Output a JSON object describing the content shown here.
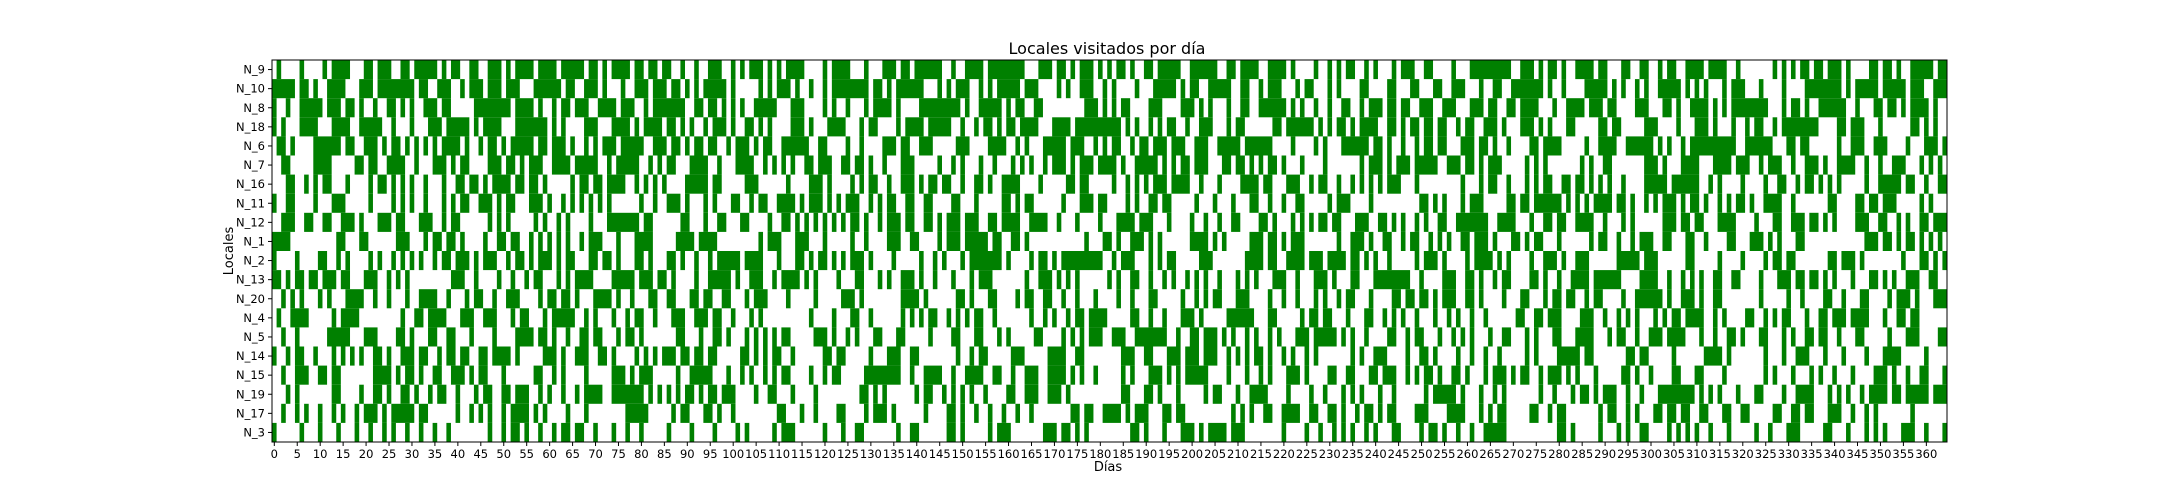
{
  "chart_data": {
    "type": "heatmap",
    "title": "Locales visitados por día",
    "xlabel": "Días",
    "ylabel": "Locales",
    "color": "#008000",
    "background": "#ffffff",
    "n_days": 365,
    "x_ticks": [
      0,
      5,
      10,
      15,
      20,
      25,
      30,
      35,
      40,
      45,
      50,
      55,
      60,
      65,
      70,
      75,
      80,
      85,
      90,
      95,
      100,
      105,
      110,
      115,
      120,
      125,
      130,
      135,
      140,
      145,
      150,
      155,
      160,
      165,
      170,
      175,
      180,
      185,
      190,
      195,
      200,
      205,
      210,
      215,
      220,
      225,
      230,
      235,
      240,
      245,
      250,
      255,
      260,
      265,
      270,
      275,
      280,
      285,
      290,
      295,
      300,
      305,
      310,
      315,
      320,
      325,
      330,
      335,
      340,
      345,
      350,
      355,
      360
    ],
    "rows": [
      {
        "label": "N_9",
        "visit_rate": 0.62
      },
      {
        "label": "N_10",
        "visit_rate": 0.58
      },
      {
        "label": "N_8",
        "visit_rate": 0.57
      },
      {
        "label": "N_18",
        "visit_rate": 0.55
      },
      {
        "label": "N_6",
        "visit_rate": 0.55
      },
      {
        "label": "N_7",
        "visit_rate": 0.52
      },
      {
        "label": "N_16",
        "visit_rate": 0.5
      },
      {
        "label": "N_11",
        "visit_rate": 0.48
      },
      {
        "label": "N_12",
        "visit_rate": 0.45
      },
      {
        "label": "N_1",
        "visit_rate": 0.45
      },
      {
        "label": "N_2",
        "visit_rate": 0.45
      },
      {
        "label": "N_13",
        "visit_rate": 0.43
      },
      {
        "label": "N_20",
        "visit_rate": 0.43
      },
      {
        "label": "N_4",
        "visit_rate": 0.42
      },
      {
        "label": "N_5",
        "visit_rate": 0.42
      },
      {
        "label": "N_14",
        "visit_rate": 0.4
      },
      {
        "label": "N_15",
        "visit_rate": 0.4
      },
      {
        "label": "N_19",
        "visit_rate": 0.38
      },
      {
        "label": "N_17",
        "visit_rate": 0.35
      },
      {
        "label": "N_3",
        "visit_rate": 0.33
      }
    ]
  }
}
